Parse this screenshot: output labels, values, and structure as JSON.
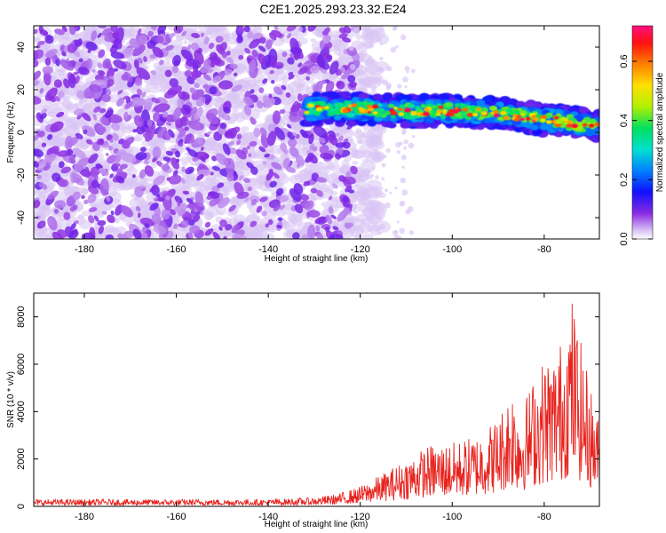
{
  "title": "C2E1.2025.293.23.32.E24",
  "chart_data": [
    {
      "type": "heatmap",
      "xlabel": "Height of straight line (km)",
      "ylabel": "Frequency (Hz)",
      "xlim": [
        -191,
        -68
      ],
      "ylim": [
        -50,
        50
      ],
      "x_ticks": [
        -180,
        -160,
        -140,
        -120,
        -100,
        -80
      ],
      "y_ticks": [
        -40,
        -20,
        0,
        20,
        40
      ],
      "colorbar": {
        "label": "Normalized spectral amplitude",
        "range": [
          0,
          0.72
        ],
        "ticks": [
          0.0,
          0.2,
          0.4,
          0.6
        ]
      },
      "band": {
        "x_range": [
          -132,
          -68
        ],
        "center_freq": [
          [
            -132,
            11
          ],
          [
            -120,
            11
          ],
          [
            -110,
            10
          ],
          [
            -100,
            10
          ],
          [
            -90,
            9
          ],
          [
            -80,
            6
          ],
          [
            -68,
            3
          ]
        ],
        "peak_amplitude": 0.7
      },
      "noise_region_x": [
        -191,
        -115
      ],
      "grid": false
    },
    {
      "type": "line",
      "xlabel": "Height of straight line (km)",
      "ylabel": "SNR (10 * v/v)",
      "xlim": [
        -191,
        -68
      ],
      "ylim": [
        0,
        9000
      ],
      "x_ticks": [
        -180,
        -160,
        -140,
        -120,
        -100,
        -80
      ],
      "y_ticks": [
        0,
        2000,
        4000,
        6000,
        8000
      ],
      "color": "#e8231e",
      "envelope": [
        [
          -191,
          300
        ],
        [
          -140,
          300
        ],
        [
          -130,
          380
        ],
        [
          -125,
          520
        ],
        [
          -120,
          850
        ],
        [
          -115,
          1400
        ],
        [
          -110,
          2000
        ],
        [
          -105,
          2600
        ],
        [
          -100,
          2700
        ],
        [
          -95,
          3000
        ],
        [
          -90,
          3800
        ],
        [
          -87,
          5200
        ],
        [
          -85,
          4200
        ],
        [
          -82,
          5600
        ],
        [
          -80,
          6300
        ],
        [
          -78,
          6500
        ],
        [
          -76,
          7200
        ],
        [
          -74,
          9000
        ],
        [
          -72,
          6900
        ],
        [
          -70,
          5200
        ],
        [
          -68,
          3500
        ]
      ],
      "grid": false
    }
  ]
}
